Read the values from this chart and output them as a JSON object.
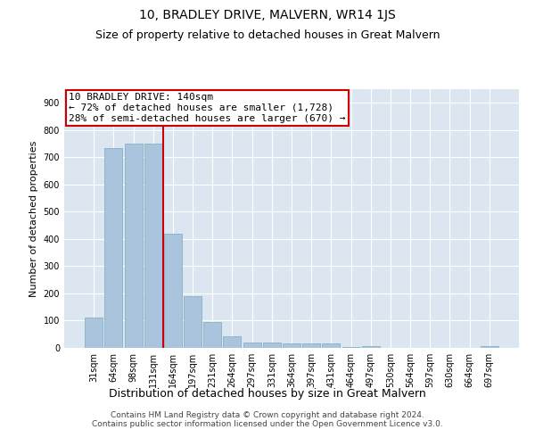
{
  "title": "10, BRADLEY DRIVE, MALVERN, WR14 1JS",
  "subtitle": "Size of property relative to detached houses in Great Malvern",
  "xlabel": "Distribution of detached houses by size in Great Malvern",
  "ylabel": "Number of detached properties",
  "categories": [
    "31sqm",
    "64sqm",
    "98sqm",
    "131sqm",
    "164sqm",
    "197sqm",
    "231sqm",
    "264sqm",
    "297sqm",
    "331sqm",
    "364sqm",
    "397sqm",
    "431sqm",
    "464sqm",
    "497sqm",
    "530sqm",
    "564sqm",
    "597sqm",
    "630sqm",
    "664sqm",
    "697sqm"
  ],
  "values": [
    110,
    735,
    750,
    750,
    420,
    190,
    95,
    43,
    20,
    20,
    17,
    15,
    15,
    3,
    5,
    0,
    0,
    0,
    0,
    0,
    8
  ],
  "bar_color": "#aac4dd",
  "bar_edge_color": "#7aaac0",
  "background_color": "#dce6f0",
  "grid_color": "#ffffff",
  "ylim": [
    0,
    950
  ],
  "yticks": [
    0,
    100,
    200,
    300,
    400,
    500,
    600,
    700,
    800,
    900
  ],
  "property_line_x": 3.5,
  "annotation_line1": "10 BRADLEY DRIVE: 140sqm",
  "annotation_line2": "← 72% of detached houses are smaller (1,728)",
  "annotation_line3": "28% of semi-detached houses are larger (670) →",
  "annotation_box_color": "#cc0000",
  "footer_text": "Contains HM Land Registry data © Crown copyright and database right 2024.\nContains public sector information licensed under the Open Government Licence v3.0.",
  "title_fontsize": 10,
  "subtitle_fontsize": 9,
  "xlabel_fontsize": 9,
  "ylabel_fontsize": 8,
  "tick_fontsize": 7,
  "annotation_fontsize": 8,
  "footer_fontsize": 6.5
}
